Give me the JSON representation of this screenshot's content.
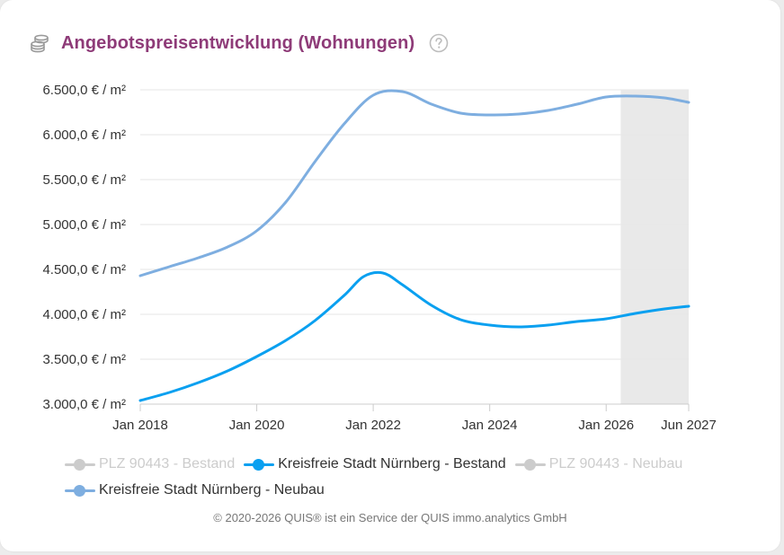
{
  "header": {
    "title": "Angebotspreisentwicklung (Wohnungen)",
    "icon": "coins-stack-icon",
    "help_icon": "help-circle-icon"
  },
  "chart_data": {
    "type": "line",
    "title": "Angebotspreisentwicklung (Wohnungen)",
    "xlabel": "",
    "ylabel": "",
    "x_range": [
      "2018-01",
      "2027-06"
    ],
    "x_ticks": [
      "Jan 2018",
      "Jan 2020",
      "Jan 2022",
      "Jan 2024",
      "Jan 2026",
      "Jun 2027"
    ],
    "ylim": [
      3000,
      6500
    ],
    "y_ticks": [
      "3.000,0 € / m²",
      "3.500,0 € / m²",
      "4.000,0 € / m²",
      "4.500,0 € / m²",
      "5.000,0 € / m²",
      "5.500,0 € / m²",
      "6.000,0 € / m²",
      "6.500,0 € / m²"
    ],
    "y_tick_values": [
      3000,
      3500,
      4000,
      4500,
      5000,
      5500,
      6000,
      6500
    ],
    "grid": "horizontal",
    "forecast_band": [
      "2026-04",
      "2027-06"
    ],
    "legend_position": "bottom",
    "series": [
      {
        "name": "PLZ 90443 - Bestand",
        "visible": false,
        "color": "#cccccc",
        "points": []
      },
      {
        "name": "Kreisfreie Stadt Nürnberg - Bestand",
        "visible": true,
        "color": "#0aa0f0",
        "points": [
          [
            "2018-01",
            3040
          ],
          [
            "2018-07",
            3130
          ],
          [
            "2019-01",
            3240
          ],
          [
            "2019-07",
            3370
          ],
          [
            "2020-01",
            3530
          ],
          [
            "2020-07",
            3710
          ],
          [
            "2021-01",
            3930
          ],
          [
            "2021-07",
            4210
          ],
          [
            "2021-11",
            4420
          ],
          [
            "2022-03",
            4460
          ],
          [
            "2022-07",
            4330
          ],
          [
            "2023-01",
            4100
          ],
          [
            "2023-07",
            3940
          ],
          [
            "2024-01",
            3880
          ],
          [
            "2024-07",
            3860
          ],
          [
            "2025-01",
            3880
          ],
          [
            "2025-07",
            3920
          ],
          [
            "2026-01",
            3950
          ],
          [
            "2026-07",
            4010
          ],
          [
            "2027-01",
            4060
          ],
          [
            "2027-06",
            4090
          ]
        ]
      },
      {
        "name": "PLZ 90443 - Neubau",
        "visible": false,
        "color": "#cccccc",
        "points": []
      },
      {
        "name": "Kreisfreie Stadt Nürnberg - Neubau",
        "visible": true,
        "color": "#7eaee0",
        "points": [
          [
            "2018-01",
            4430
          ],
          [
            "2018-07",
            4530
          ],
          [
            "2019-01",
            4630
          ],
          [
            "2019-07",
            4750
          ],
          [
            "2020-01",
            4930
          ],
          [
            "2020-07",
            5250
          ],
          [
            "2021-01",
            5700
          ],
          [
            "2021-07",
            6120
          ],
          [
            "2022-01",
            6440
          ],
          [
            "2022-07",
            6480
          ],
          [
            "2023-01",
            6340
          ],
          [
            "2023-07",
            6240
          ],
          [
            "2024-01",
            6220
          ],
          [
            "2024-07",
            6230
          ],
          [
            "2025-01",
            6270
          ],
          [
            "2025-07",
            6340
          ],
          [
            "2026-01",
            6420
          ],
          [
            "2026-07",
            6430
          ],
          [
            "2027-01",
            6410
          ],
          [
            "2027-06",
            6360
          ]
        ]
      }
    ]
  },
  "legend": [
    {
      "label": "PLZ 90443 - Bestand",
      "state": "inactive",
      "color": "#cccccc"
    },
    {
      "label": "Kreisfreie Stadt Nürnberg - Bestand",
      "state": "active",
      "color": "#0aa0f0"
    },
    {
      "label": "PLZ 90443 - Neubau",
      "state": "inactive",
      "color": "#cccccc"
    },
    {
      "label": "Kreisfreie Stadt Nürnberg - Neubau",
      "state": "active",
      "color": "#7eaee0"
    }
  ],
  "footer": {
    "copyright": "© 2020-2026 QUIS® ist ein Service der QUIS immo.analytics GmbH"
  },
  "colors": {
    "title": "#8e3b78",
    "forecast_band": "#e9e9e9",
    "grid": "#e6e6e6"
  }
}
